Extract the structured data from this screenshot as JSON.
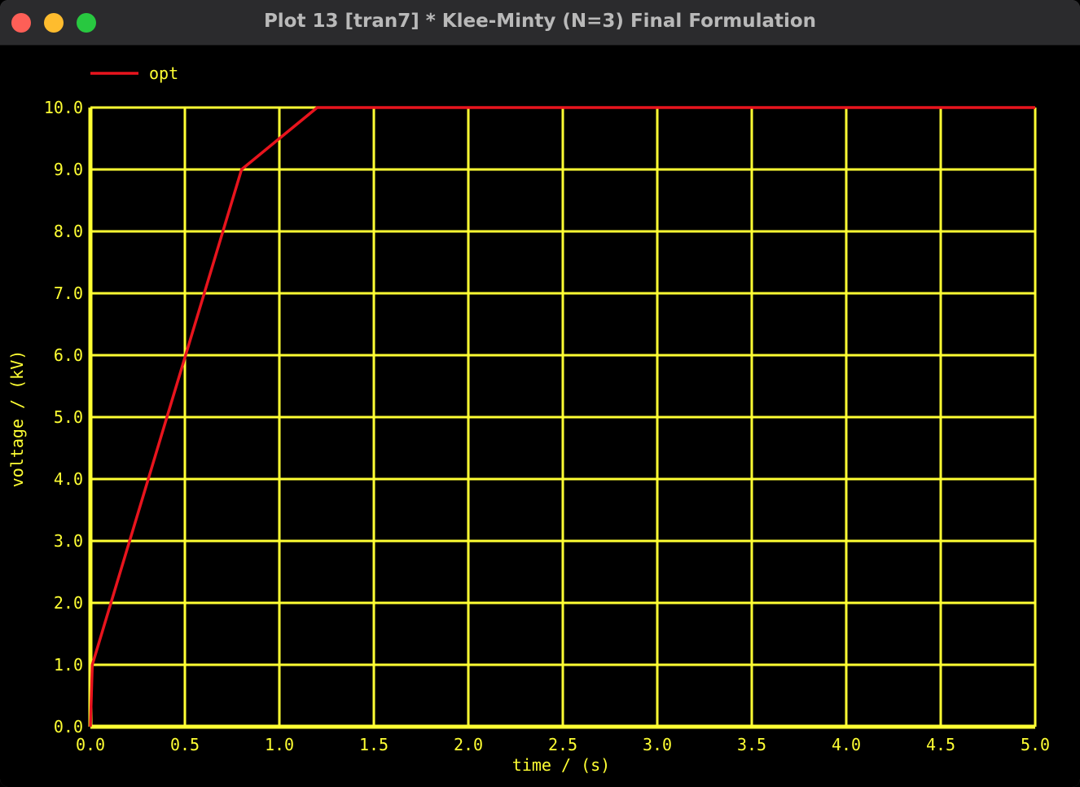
{
  "window": {
    "title": "Plot 13 [tran7] * Klee-Minty (N=3) Final Formulation"
  },
  "colors": {
    "background": "#000000",
    "grid": "#ffff33",
    "text": "#ffff33",
    "series": "#e8141d"
  },
  "chart_data": {
    "type": "line",
    "title": "",
    "xlabel": "time / (s)",
    "ylabel": "voltage / (kV)",
    "xlim": [
      0,
      5
    ],
    "ylim": [
      0,
      10
    ],
    "grid": true,
    "legend_position": "top-left",
    "x_ticks": [
      "0.0",
      "0.5",
      "1.0",
      "1.5",
      "2.0",
      "2.5",
      "3.0",
      "3.5",
      "4.0",
      "4.5",
      "5.0"
    ],
    "y_ticks": [
      "0.0",
      "1.0",
      "2.0",
      "3.0",
      "4.0",
      "5.0",
      "6.0",
      "7.0",
      "8.0",
      "9.0",
      "10.0"
    ],
    "series": [
      {
        "name": "opt",
        "color": "#e8141d",
        "x": [
          0,
          0.01,
          0.8,
          1.2,
          5.0
        ],
        "y": [
          0,
          1,
          9,
          10,
          10
        ]
      }
    ]
  }
}
